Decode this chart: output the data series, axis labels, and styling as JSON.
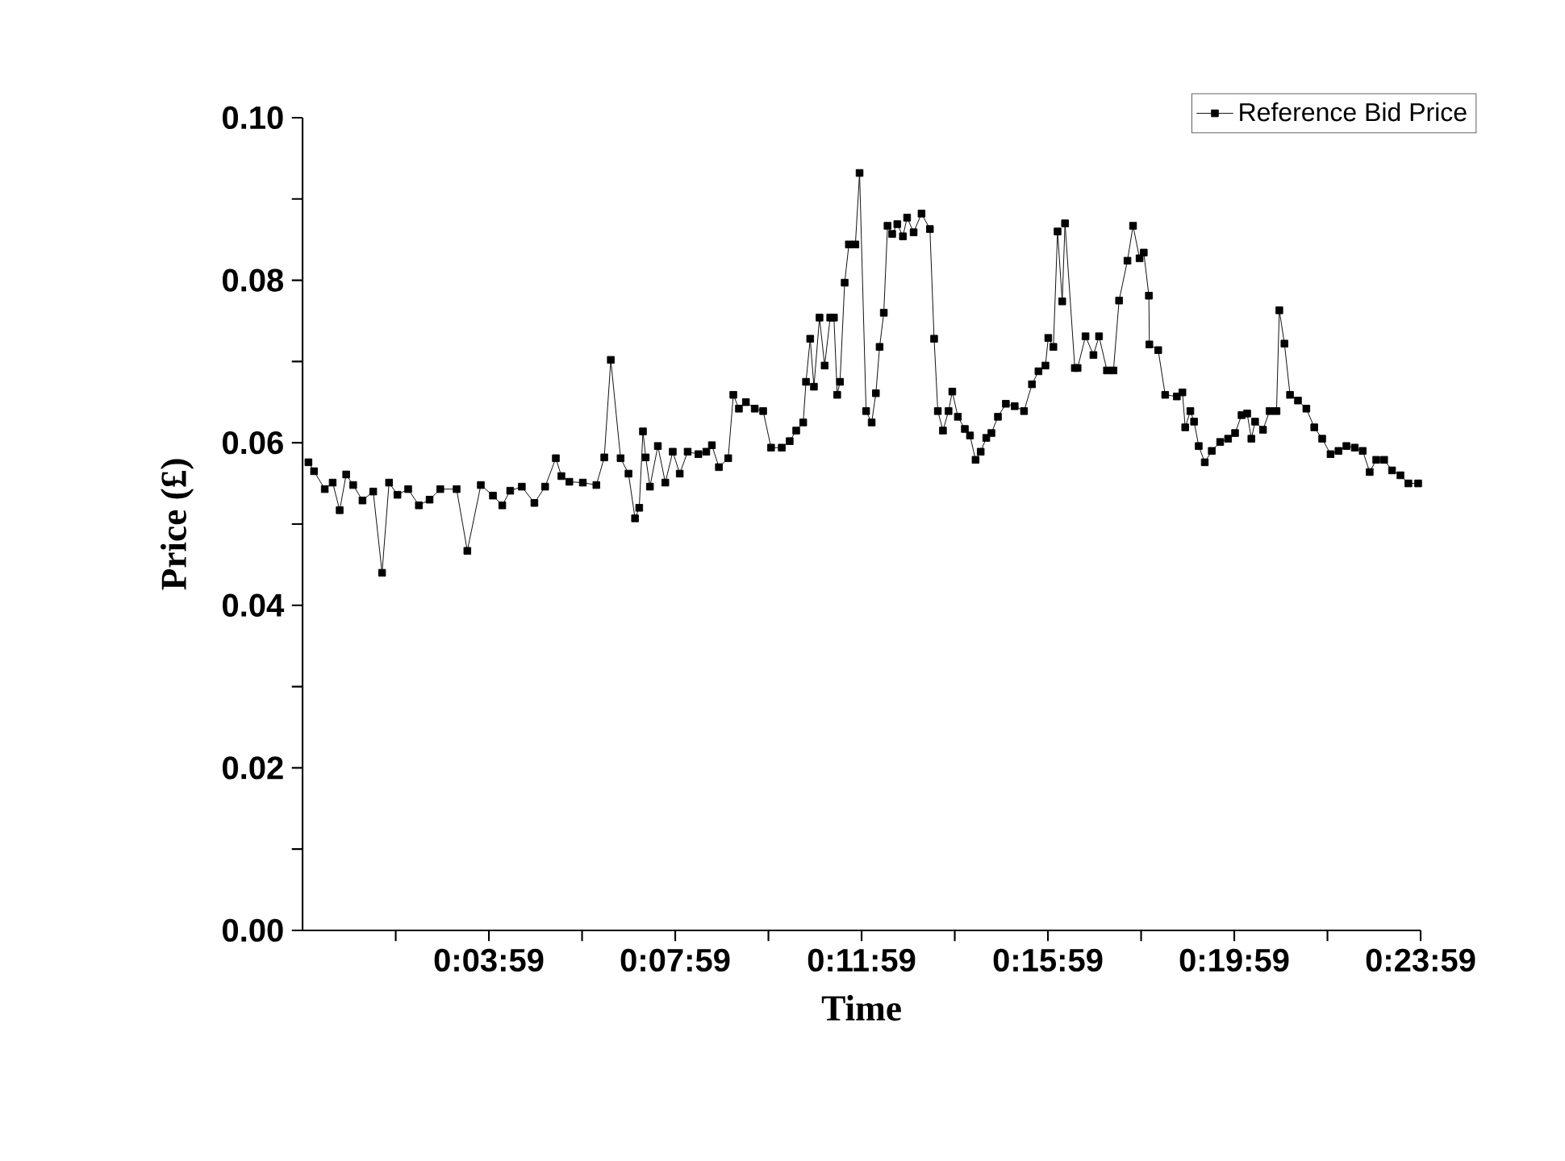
{
  "chart_data": {
    "type": "line",
    "xlabel": "Time",
    "ylabel": "Price (£)",
    "xlim": [
      -0.0167,
      23.9833
    ],
    "ylim": [
      0,
      0.1
    ],
    "xticks": [
      {
        "value": 1.9833,
        "label": null
      },
      {
        "value": 3.9833,
        "label": "0:03:59"
      },
      {
        "value": 5.9833,
        "label": null
      },
      {
        "value": 7.9833,
        "label": "0:07:59"
      },
      {
        "value": 9.9833,
        "label": null
      },
      {
        "value": 11.9833,
        "label": "0:11:59"
      },
      {
        "value": 13.9833,
        "label": null
      },
      {
        "value": 15.9833,
        "label": "0:15:59"
      },
      {
        "value": 17.9833,
        "label": null
      },
      {
        "value": 19.9833,
        "label": "0:19:59"
      },
      {
        "value": 21.9833,
        "label": null
      },
      {
        "value": 23.9833,
        "label": "0:23:59"
      }
    ],
    "yticks": [
      {
        "value": 0,
        "label": "0.00"
      },
      {
        "value": 0.01,
        "label": null
      },
      {
        "value": 0.02,
        "label": "0.02"
      },
      {
        "value": 0.03,
        "label": null
      },
      {
        "value": 0.04,
        "label": "0.04"
      },
      {
        "value": 0.05,
        "label": null
      },
      {
        "value": 0.06,
        "label": "0.06"
      },
      {
        "value": 0.07,
        "label": null
      },
      {
        "value": 0.08,
        "label": "0.08"
      },
      {
        "value": 0.09,
        "label": null
      },
      {
        "value": 0.1,
        "label": "0.10"
      }
    ],
    "legend": "top right",
    "marker": "square",
    "line_style": "solid",
    "grid": false,
    "series": [
      {
        "name": "Reference Bid Price",
        "color": "#000000",
        "x": [
          0.11,
          0.23,
          0.46,
          0.63,
          0.78,
          0.92,
          1.07,
          1.27,
          1.5,
          1.69,
          1.84,
          2.02,
          2.25,
          2.48,
          2.71,
          2.94,
          3.29,
          3.52,
          3.81,
          4.07,
          4.27,
          4.44,
          4.69,
          4.96,
          5.19,
          5.42,
          5.54,
          5.71,
          6.0,
          6.29,
          6.46,
          6.6,
          6.81,
          6.98,
          7.12,
          7.21,
          7.29,
          7.35,
          7.44,
          7.61,
          7.77,
          7.93,
          8.08,
          8.25,
          8.48,
          8.65,
          8.77,
          8.92,
          9.12,
          9.23,
          9.35,
          9.5,
          9.69,
          9.87,
          10.04,
          10.27,
          10.44,
          10.58,
          10.73,
          10.79,
          10.88,
          10.96,
          11.08,
          11.19,
          11.31,
          11.39,
          11.46,
          11.52,
          11.62,
          11.71,
          11.85,
          11.94,
          12.08,
          12.2,
          12.29,
          12.37,
          12.46,
          12.54,
          12.64,
          12.75,
          12.87,
          12.96,
          13.1,
          13.27,
          13.45,
          13.54,
          13.62,
          13.73,
          13.85,
          13.93,
          14.05,
          14.2,
          14.31,
          14.43,
          14.54,
          14.66,
          14.77,
          14.91,
          15.08,
          15.27,
          15.47,
          15.64,
          15.78,
          15.93,
          15.99,
          16.1,
          16.19,
          16.29,
          16.35,
          16.56,
          16.62,
          16.79,
          16.96,
          17.08,
          17.25,
          17.39,
          17.51,
          17.69,
          17.81,
          17.95,
          18.04,
          18.15,
          18.16,
          18.35,
          18.5,
          18.75,
          18.87,
          18.93,
          19.04,
          19.12,
          19.22,
          19.35,
          19.5,
          19.68,
          19.85,
          20.0,
          20.14,
          20.26,
          20.35,
          20.43,
          20.6,
          20.74,
          20.89,
          20.95,
          21.06,
          21.18,
          21.35,
          21.53,
          21.7,
          21.87,
          22.05,
          22.22,
          22.39,
          22.57,
          22.74,
          22.89,
          23.03,
          23.2,
          23.37,
          23.55,
          23.72,
          23.93
        ],
        "values": [
          0.0576,
          0.0565,
          0.0543,
          0.0551,
          0.0517,
          0.0561,
          0.0548,
          0.0529,
          0.054,
          0.044,
          0.0551,
          0.0536,
          0.0543,
          0.0523,
          0.053,
          0.0543,
          0.0543,
          0.0467,
          0.0548,
          0.0535,
          0.0523,
          0.0541,
          0.0546,
          0.0526,
          0.0546,
          0.0581,
          0.0559,
          0.0552,
          0.0551,
          0.0548,
          0.0582,
          0.0702,
          0.0581,
          0.0562,
          0.0507,
          0.052,
          0.0614,
          0.0582,
          0.0546,
          0.0596,
          0.0551,
          0.0589,
          0.0562,
          0.0589,
          0.0586,
          0.0589,
          0.0597,
          0.057,
          0.0581,
          0.0659,
          0.0642,
          0.065,
          0.0642,
          0.0639,
          0.0594,
          0.0594,
          0.0602,
          0.0615,
          0.0625,
          0.0675,
          0.0728,
          0.0669,
          0.0754,
          0.0695,
          0.0754,
          0.0754,
          0.0659,
          0.0675,
          0.0797,
          0.0844,
          0.0844,
          0.0932,
          0.0639,
          0.0625,
          0.0661,
          0.0718,
          0.076,
          0.0867,
          0.0857,
          0.0869,
          0.0854,
          0.0877,
          0.0859,
          0.0882,
          0.0863,
          0.0728,
          0.0639,
          0.0615,
          0.0639,
          0.0663,
          0.0632,
          0.0617,
          0.0609,
          0.0579,
          0.0589,
          0.0606,
          0.0612,
          0.0632,
          0.0648,
          0.0645,
          0.0639,
          0.0672,
          0.0688,
          0.0695,
          0.0729,
          0.0718,
          0.086,
          0.0774,
          0.087,
          0.0692,
          0.0692,
          0.0731,
          0.0708,
          0.0731,
          0.0689,
          0.0689,
          0.0775,
          0.0824,
          0.0867,
          0.0827,
          0.0834,
          0.0781,
          0.0721,
          0.0714,
          0.0659,
          0.0657,
          0.0662,
          0.0619,
          0.0639,
          0.0626,
          0.0596,
          0.0576,
          0.059,
          0.0601,
          0.0605,
          0.0612,
          0.0634,
          0.0636,
          0.0605,
          0.0626,
          0.0616,
          0.0639,
          0.0639,
          0.0763,
          0.0722,
          0.0659,
          0.0652,
          0.0642,
          0.0619,
          0.0605,
          0.0586,
          0.059,
          0.0596,
          0.0594,
          0.059,
          0.0564,
          0.0579,
          0.0579,
          0.0566,
          0.056,
          0.055,
          0.055
        ]
      }
    ]
  }
}
